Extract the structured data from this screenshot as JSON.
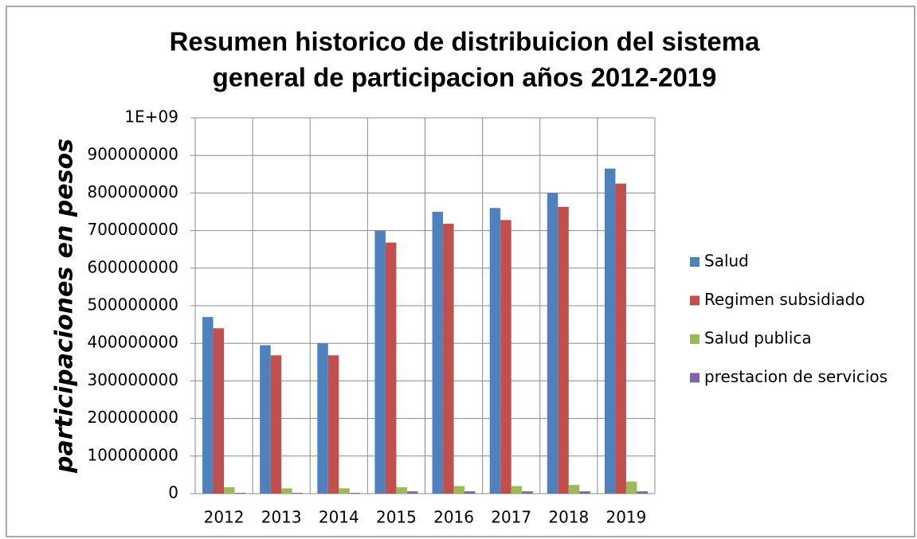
{
  "chart_data": {
    "type": "bar",
    "title": [
      "Resumen historico de distribuicion del sistema",
      "general de participacion años 2012-2019"
    ],
    "y_label": "participaciones  en pesos",
    "categories": [
      "2012",
      "2013",
      "2014",
      "2015",
      "2016",
      "2017",
      "2018",
      "2019"
    ],
    "series": [
      {
        "name": "Salud",
        "color": "#4f81bd",
        "values": [
          470000000,
          395000000,
          400000000,
          700000000,
          750000000,
          760000000,
          800000000,
          865000000
        ]
      },
      {
        "name": "Regimen subsidiado",
        "color": "#c0504d",
        "values": [
          440000000,
          368000000,
          368000000,
          668000000,
          718000000,
          728000000,
          763000000,
          825000000
        ]
      },
      {
        "name": "Salud publica",
        "color": "#9bbb59",
        "values": [
          17000000,
          14000000,
          14000000,
          17000000,
          20000000,
          20000000,
          23000000,
          32000000
        ]
      },
      {
        "name": "prestacion de servicios",
        "color": "#8064a2",
        "values": [
          2000000,
          2000000,
          2000000,
          6000000,
          6000000,
          6000000,
          6000000,
          6000000
        ]
      }
    ],
    "ylim": [
      0,
      1000000000
    ],
    "yticks": [
      0,
      100000000,
      200000000,
      300000000,
      400000000,
      500000000,
      600000000,
      700000000,
      800000000,
      900000000,
      {
        "value": 1000000000,
        "label": "1E+09"
      }
    ],
    "grid": true,
    "legend": "right"
  }
}
